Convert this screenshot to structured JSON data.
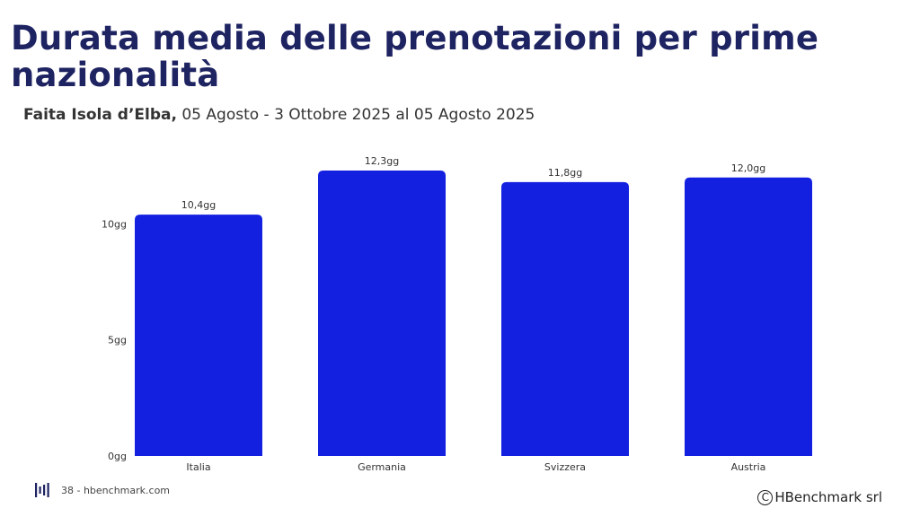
{
  "header": {
    "title": "Durata media delle prenotazioni per prime nazionalità",
    "subtitle_bold": "Faita Isola d’Elba,",
    "subtitle_rest": " 05 Agosto - 3 Ottobre 2025 al 05 Agosto 2025"
  },
  "chart_data": {
    "type": "bar",
    "categories": [
      "Italia",
      "Germania",
      "Svizzera",
      "Austria"
    ],
    "values": [
      10.4,
      12.3,
      11.8,
      12.0
    ],
    "data_labels": [
      "10,4gg",
      "12,3gg",
      "11,8gg",
      "12,0gg"
    ],
    "yticks": [
      0,
      5,
      10
    ],
    "ytick_labels": [
      "0gg",
      "5gg",
      "10gg"
    ],
    "ylim": [
      0,
      12.3
    ],
    "grid": false,
    "bar_color": "#1320e0"
  },
  "footer": {
    "page_text": "38 - hbenchmark.com",
    "copyright": "HBenchmark srl",
    "logo_icon": "bars-logo-icon",
    "copyright_icon": "copyright-icon"
  }
}
